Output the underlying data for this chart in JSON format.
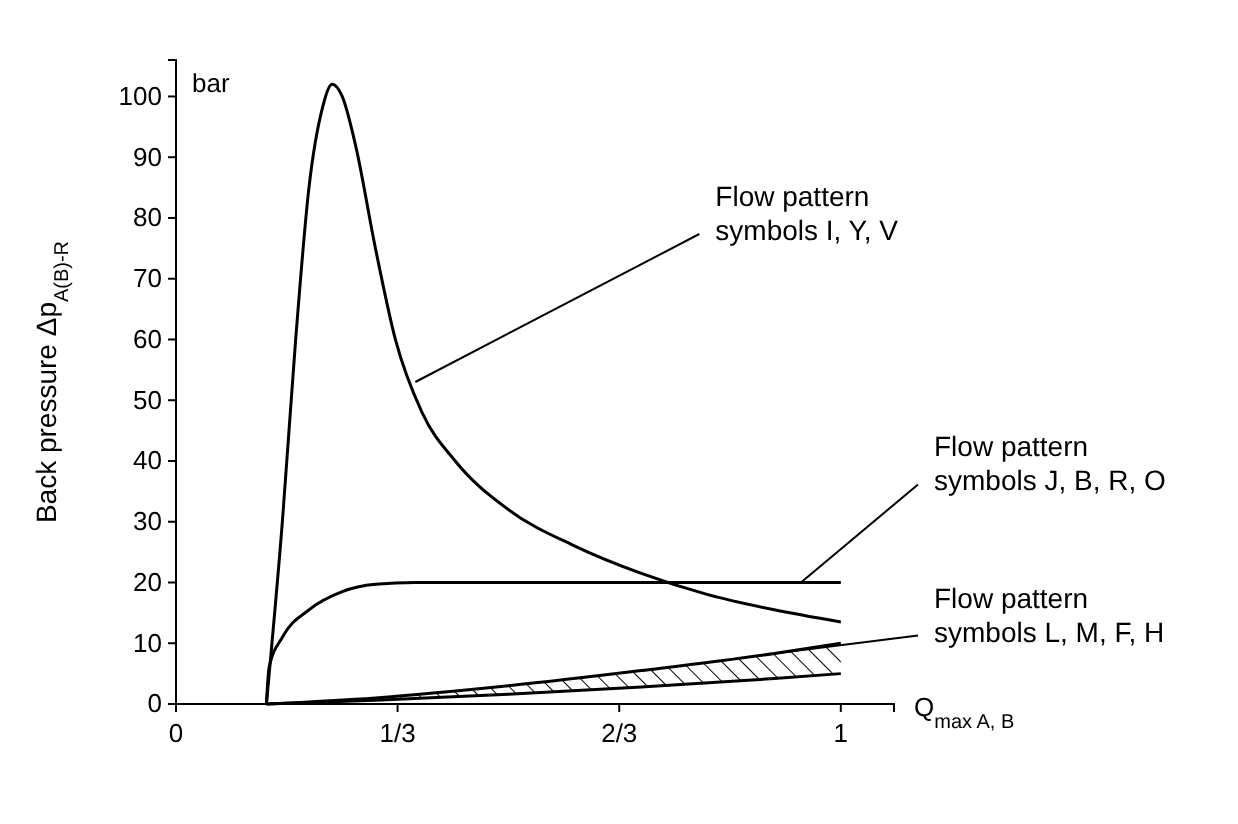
{
  "chart_data": {
    "type": "line",
    "xlabel": "Q$_{max A, B}$",
    "ylabel": "Back pressure Δp$_{A(B)-R}$",
    "xlim": [
      0,
      1.08
    ],
    "ylim": [
      0,
      106
    ],
    "xticks": [
      0,
      {
        "value": 0.3333,
        "label": "1/3"
      },
      {
        "value": 0.6667,
        "label": "2/3"
      },
      1
    ],
    "yticks": [
      0,
      10,
      20,
      30,
      40,
      50,
      60,
      70,
      80,
      90,
      100
    ],
    "grid": false,
    "marker": "none",
    "line_style": "solid",
    "series": [
      {
        "color": "#000000",
        "x": [
          0.136,
          0.16,
          0.18,
          0.2,
          0.22,
          0.235,
          0.25,
          0.27,
          0.3,
          0.33,
          0.37,
          0.42,
          0.5,
          0.6,
          0.7,
          0.8,
          0.9,
          1.0
        ],
        "values": [
          0,
          30,
          60,
          85,
          98,
          102,
          100,
          92,
          75,
          60,
          48,
          40,
          32,
          26,
          21.5,
          18,
          15.5,
          13.5
        ]
      },
      {
        "color": "#000000",
        "x": [
          0.136,
          0.14,
          0.16,
          0.2,
          0.25,
          0.3,
          0.36,
          1.0
        ],
        "values": [
          0,
          6,
          11,
          15.5,
          18.5,
          19.7,
          20,
          20
        ]
      },
      {
        "color": "#000000",
        "x": [
          0.136,
          0.3,
          0.5,
          0.7,
          0.9,
          1.0
        ],
        "values": [
          0,
          1,
          3,
          5.5,
          8.3,
          10
        ],
        "lower": [
          0,
          0.6,
          1.6,
          2.8,
          4.2,
          5
        ],
        "upper": [
          0,
          1,
          3,
          5.5,
          8.3,
          10
        ]
      },
      {
        "color": "#000000",
        "x": [
          0.136,
          0.3,
          0.5,
          0.7,
          0.9,
          1.0
        ],
        "values": [
          0,
          0.6,
          1.6,
          2.8,
          4.2,
          5
        ]
      }
    ],
    "annotations": [
      "bar",
      {
        "text": "Flow pattern\nsymbols I, Y, V",
        "x": 0.36,
        "y": 53
      },
      {
        "text": "Flow pattern\nsymbols J, B, R, O",
        "x": 0.94,
        "y": 20
      },
      {
        "text": "Flow pattern\nsymbols L, M, F, H",
        "x": 0.9,
        "y": 8.3
      }
    ]
  }
}
